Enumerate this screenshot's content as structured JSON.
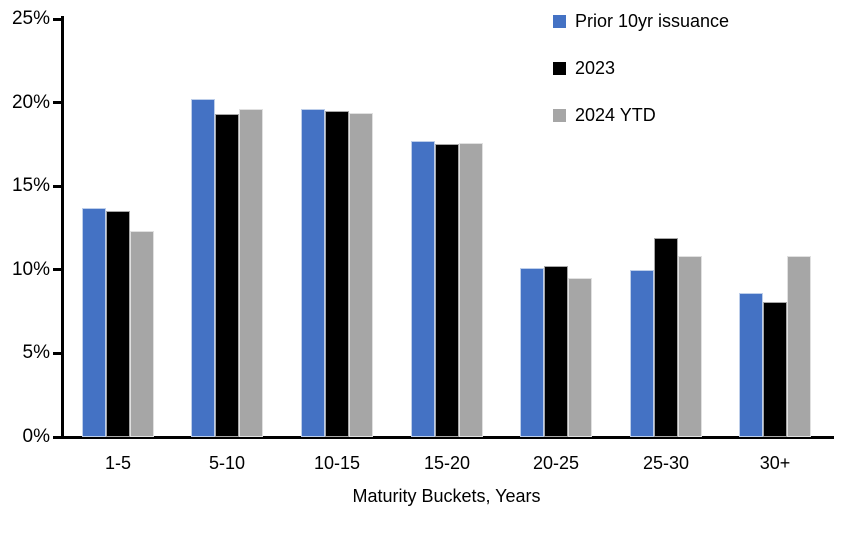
{
  "chart_data": {
    "type": "bar",
    "title": "",
    "xlabel": "Maturity Buckets, Years",
    "ylabel": "",
    "categories": [
      "1-5",
      "5-10",
      "10-15",
      "15-20",
      "20-25",
      "25-30",
      "30+"
    ],
    "series": [
      {
        "name": "Prior 10yr issuance",
        "color": "#4472C4",
        "values": [
          13.7,
          20.2,
          19.6,
          17.7,
          10.1,
          10.0,
          8.6
        ]
      },
      {
        "name": "2023",
        "color": "#000000",
        "values": [
          13.5,
          19.3,
          19.5,
          17.5,
          10.2,
          11.9,
          8.1
        ]
      },
      {
        "name": "2024 YTD",
        "color": "#A6A6A6",
        "values": [
          12.3,
          19.6,
          19.4,
          17.6,
          9.5,
          10.8,
          10.8
        ]
      }
    ],
    "ylim": [
      0,
      25
    ],
    "ytick_step": 5,
    "yticks": [
      "0%",
      "5%",
      "10%",
      "15%",
      "20%",
      "25%"
    ],
    "legend_position": "top-right",
    "grid": false,
    "axis_color": "#000000",
    "background": "#FFFFFF"
  }
}
